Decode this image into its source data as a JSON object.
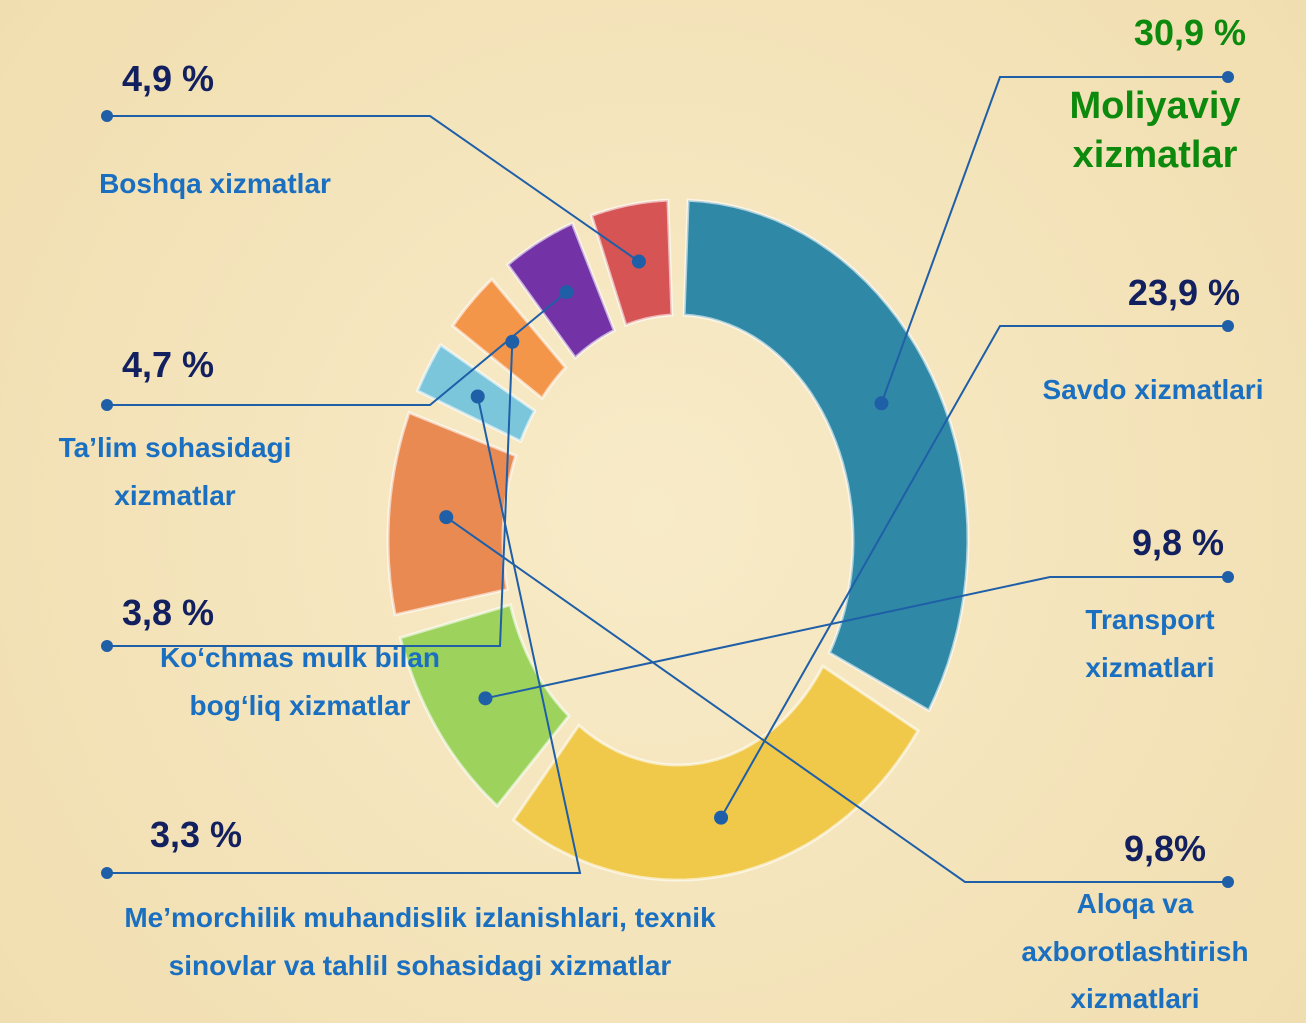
{
  "chart_data": {
    "type": "donut",
    "categories": [
      "Moliyaviy xizmatlar",
      "Savdo xizmatlari",
      "Transport xizmatlari",
      "Aloqa va axborotlashtirish xizmatlari",
      "Me’morchilik muhandislik izlanishlari, texnik sinovlar va tahlil sohasidagi xizmatlar",
      "Ko‘chmas mulk bilan bog‘liq xizmatlar",
      "Ta’lim sohasidagi xizmatlar",
      "Boshqa xizmatlar"
    ],
    "values": [
      30.9,
      23.9,
      9.8,
      9.8,
      3.3,
      3.8,
      4.7,
      4.9
    ],
    "value_labels": [
      "30,9 %",
      "23,9 %",
      "9,8 %",
      "9,8%",
      "3,3 %",
      "3,8 %",
      "4,7 %",
      "4,9 %"
    ],
    "colors": [
      "#2f89a6",
      "#f0c84a",
      "#9dd35c",
      "#e98a52",
      "#7cc6dc",
      "#f4964a",
      "#7332a6",
      "#d65453"
    ]
  }
}
